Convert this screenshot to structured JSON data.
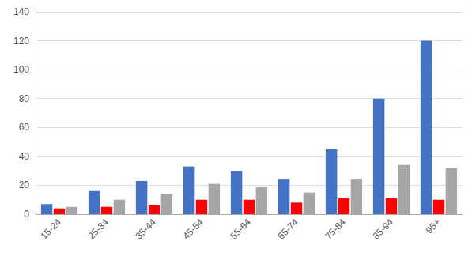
{
  "chart_data": {
    "type": "bar",
    "categories": [
      "15-24",
      "25-34",
      "35-44",
      "45-54",
      "55-64",
      "65-74",
      "75-84",
      "85-94",
      "95+"
    ],
    "series": [
      {
        "color": "#4472C4",
        "values": [
          7,
          16,
          23,
          33,
          30,
          24,
          45,
          80,
          120
        ]
      },
      {
        "color": "#FF0000",
        "values": [
          4,
          5,
          6,
          10,
          10,
          8,
          11,
          11,
          10
        ]
      },
      {
        "color": "#A6A6A6",
        "values": [
          5,
          10,
          14,
          21,
          19,
          15,
          24,
          34,
          32
        ]
      }
    ],
    "ylim": [
      0,
      140
    ],
    "yticks": [
      0,
      20,
      40,
      60,
      80,
      100,
      120,
      140
    ],
    "grid": true
  }
}
